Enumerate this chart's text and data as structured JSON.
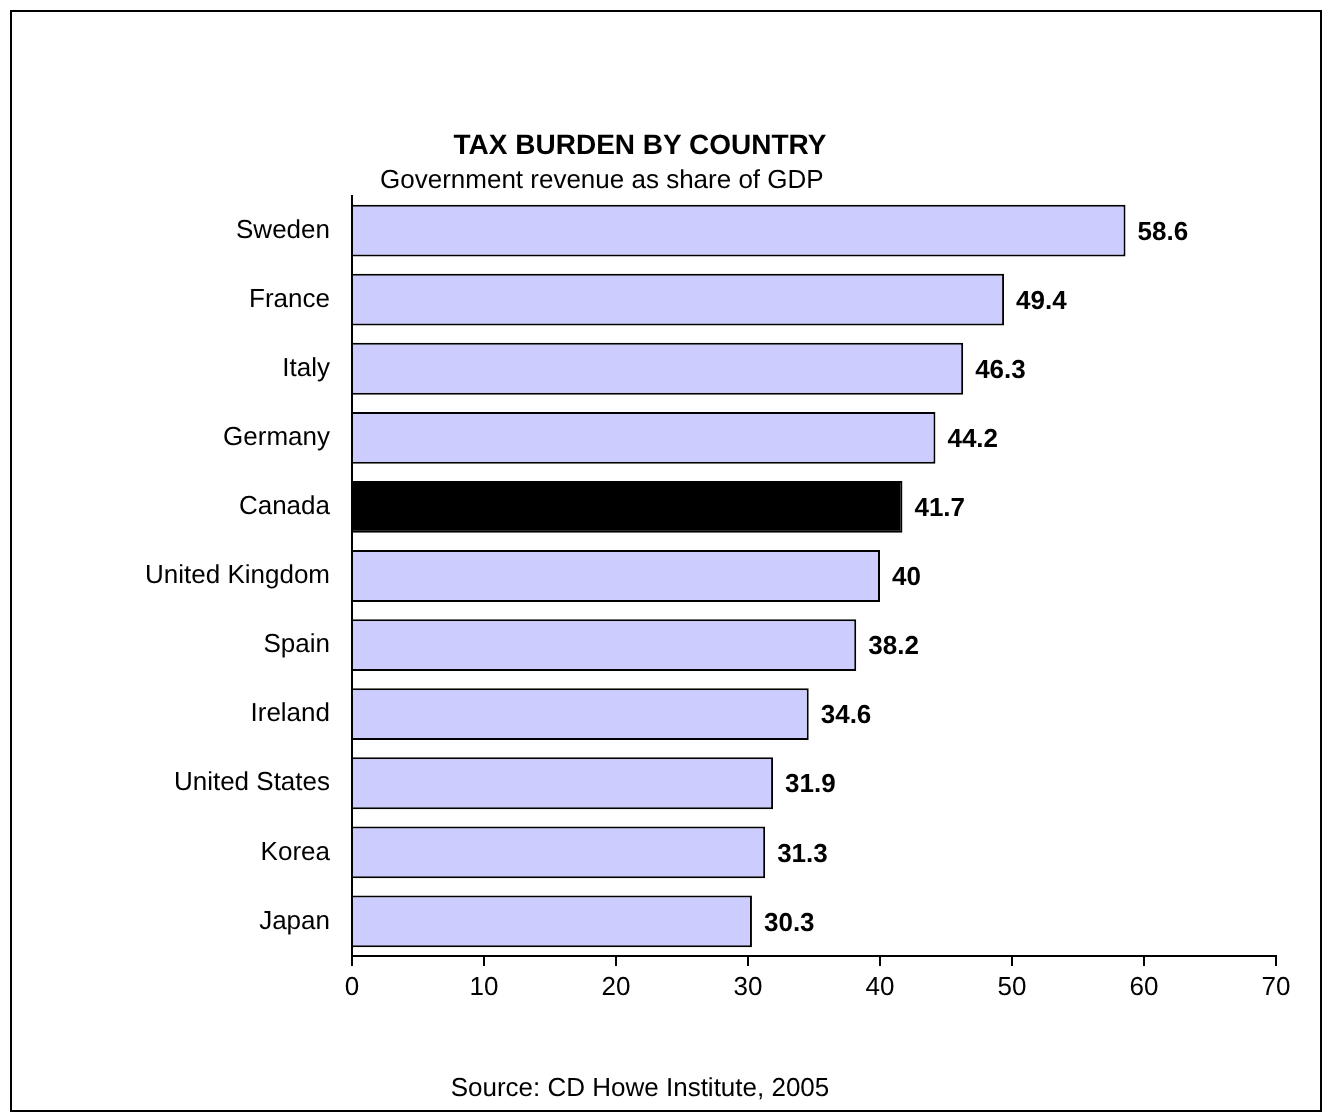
{
  "chart_data": {
    "type": "bar",
    "orientation": "horizontal",
    "title": "TAX BURDEN BY COUNTRY",
    "subtitle": "Government revenue as share of GDP",
    "annotations": [
      "Source: CD Howe Institute, 2005"
    ],
    "categories": [
      "Sweden",
      "France",
      "Italy",
      "Germany",
      "Canada",
      "United Kingdom",
      "Spain",
      "Ireland",
      "United States",
      "Korea",
      "Japan"
    ],
    "values": [
      58.6,
      49.4,
      46.3,
      44.2,
      41.7,
      40,
      38.2,
      34.6,
      31.9,
      31.3,
      30.3
    ],
    "colors": [
      "#ccccff",
      "#ccccff",
      "#ccccff",
      "#ccccff",
      "#000000",
      "#ccccff",
      "#ccccff",
      "#ccccff",
      "#ccccff",
      "#ccccff",
      "#ccccff"
    ],
    "xlim": [
      0,
      70
    ],
    "xticks": [
      0,
      10,
      20,
      30,
      40,
      50,
      60,
      70
    ],
    "grid": false,
    "legend": false,
    "data_labels": true
  }
}
